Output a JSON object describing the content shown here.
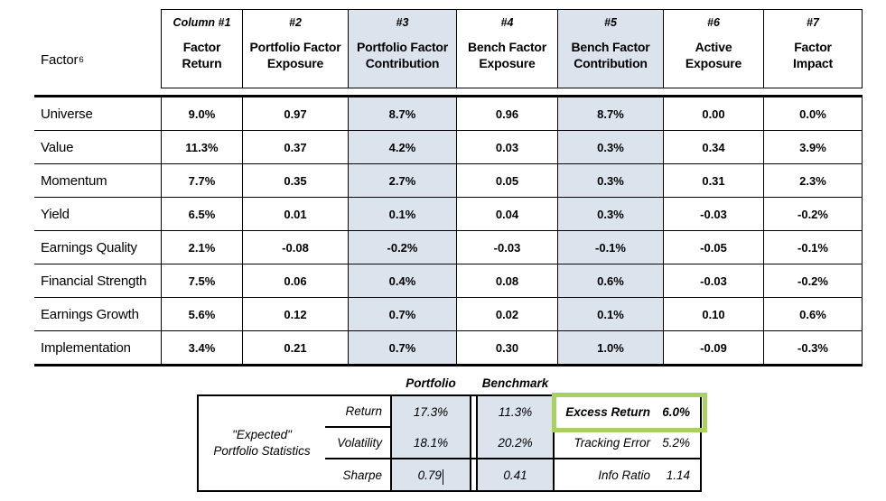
{
  "main_table": {
    "factor_header": {
      "label": "Factor",
      "superscript": "6"
    },
    "columns": [
      {
        "number": "Column #1",
        "title_lines": [
          "Factor",
          "Return"
        ],
        "shaded": false
      },
      {
        "number": "#2",
        "title_lines": [
          "Portfolio Factor",
          "Exposure"
        ],
        "shaded": false
      },
      {
        "number": "#3",
        "title_lines": [
          "Portfolio Factor",
          "Contribution"
        ],
        "shaded": true
      },
      {
        "number": "#4",
        "title_lines": [
          "Bench Factor",
          "Exposure"
        ],
        "shaded": false
      },
      {
        "number": "#5",
        "title_lines": [
          "Bench Factor",
          "Contribution"
        ],
        "shaded": true
      },
      {
        "number": "#6",
        "title_lines": [
          "Active",
          "Exposure"
        ],
        "shaded": false
      },
      {
        "number": "#7",
        "title_lines": [
          "Factor",
          "Impact"
        ],
        "shaded": false
      }
    ],
    "rows": [
      {
        "factor": "Universe",
        "values": [
          "9.0%",
          "0.97",
          "8.7%",
          "0.96",
          "8.7%",
          "0.00",
          "0.0%"
        ]
      },
      {
        "factor": "Value",
        "values": [
          "11.3%",
          "0.37",
          "4.2%",
          "0.03",
          "0.3%",
          "0.34",
          "3.9%"
        ]
      },
      {
        "factor": "Momentum",
        "values": [
          "7.7%",
          "0.35",
          "2.7%",
          "0.05",
          "0.3%",
          "0.31",
          "2.3%"
        ]
      },
      {
        "factor": "Yield",
        "values": [
          "6.5%",
          "0.01",
          "0.1%",
          "0.04",
          "0.3%",
          "-0.03",
          "-0.2%"
        ]
      },
      {
        "factor": "Earnings Quality",
        "values": [
          "2.1%",
          "-0.08",
          "-0.2%",
          "-0.03",
          "-0.1%",
          "-0.05",
          "-0.1%"
        ]
      },
      {
        "factor": "Financial Strength",
        "values": [
          "7.5%",
          "0.06",
          "0.4%",
          "0.08",
          "0.6%",
          "-0.03",
          "-0.2%"
        ]
      },
      {
        "factor": "Earnings Growth",
        "values": [
          "5.6%",
          "0.12",
          "0.7%",
          "0.02",
          "0.1%",
          "0.10",
          "0.6%"
        ]
      },
      {
        "factor": "Implementation",
        "values": [
          "3.4%",
          "0.21",
          "0.7%",
          "0.30",
          "1.0%",
          "-0.09",
          "-0.3%"
        ]
      }
    ]
  },
  "stats_table": {
    "column_headers": {
      "portfolio": "Portfolio",
      "benchmark": "Benchmark"
    },
    "row_group_label_line1": "\"Expected\"",
    "row_group_label_line2": "Portfolio Statistics",
    "rows": [
      {
        "label": "Return",
        "portfolio": "17.3%",
        "benchmark": "11.3%",
        "right_label": "Excess Return",
        "right_value": "6.0%",
        "highlighted": true
      },
      {
        "label": "Volatility",
        "portfolio": "18.1%",
        "benchmark": "20.2%",
        "right_label": "Tracking Error",
        "right_value": "5.2%",
        "highlighted": false
      },
      {
        "label": "Sharpe",
        "portfolio": "0.79",
        "benchmark": "0.41",
        "right_label": "Info Ratio",
        "right_value": "1.14",
        "highlighted": false
      }
    ]
  },
  "colors": {
    "shaded_column_bg": "#dbe3ec",
    "highlight_green": "#a9d162",
    "border_black": "#000000"
  }
}
